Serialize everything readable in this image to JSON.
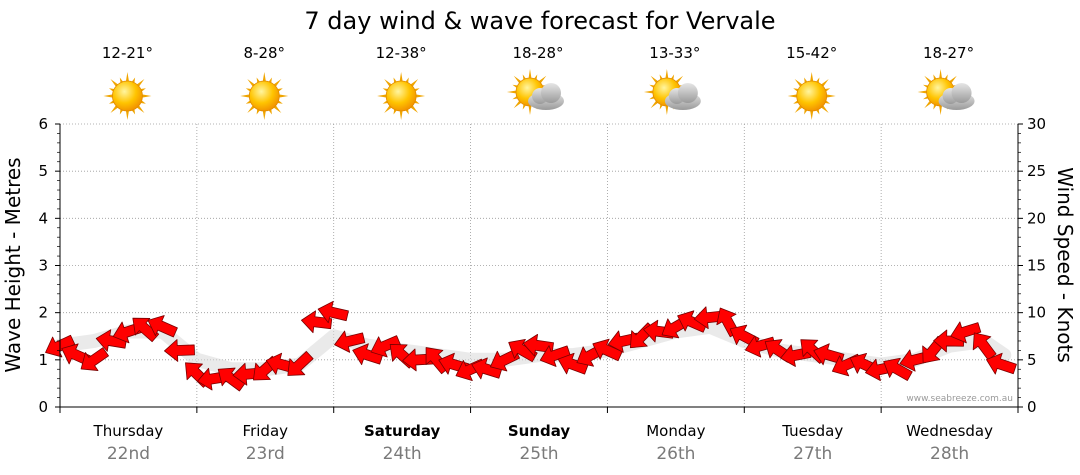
{
  "chart_data": {
    "type": "line",
    "title": "7 day wind & wave forecast for Vervale",
    "ylabel_left": "Wave Height - Metres",
    "ylabel_right": "Wind Speed - Knots",
    "ylim_left": [
      0,
      6
    ],
    "ylim_right": [
      0,
      30
    ],
    "yticks_left": [
      "0",
      "1",
      "2",
      "3",
      "4",
      "5",
      "6"
    ],
    "yticks_right": [
      "0",
      "5",
      "10",
      "15",
      "20",
      "25",
      "30"
    ],
    "grid": true,
    "days": [
      {
        "name": "Thursday",
        "date": "22nd",
        "temp": "12-21°",
        "icon": "sun-icon",
        "bold": false
      },
      {
        "name": "Friday",
        "date": "23rd",
        "temp": "8-28°",
        "icon": "sun-icon",
        "bold": false
      },
      {
        "name": "Saturday",
        "date": "24th",
        "temp": "12-38°",
        "icon": "sun-icon",
        "bold": true
      },
      {
        "name": "Sunday",
        "date": "25th",
        "temp": "18-28°",
        "icon": "sun-cloud-icon",
        "bold": true
      },
      {
        "name": "Monday",
        "date": "26th",
        "temp": "13-33°",
        "icon": "sun-cloud-icon",
        "bold": false
      },
      {
        "name": "Tuesday",
        "date": "27th",
        "temp": "15-42°",
        "icon": "sun-icon",
        "bold": false
      },
      {
        "name": "Wednesday",
        "date": "28th",
        "temp": "18-27°",
        "icon": "sun-cloud-icon",
        "bold": false
      }
    ],
    "wind_series": {
      "name": "Wind speed",
      "color": "#ff0000",
      "x_days": [
        0,
        0.12,
        0.25,
        0.38,
        0.5,
        0.62,
        0.75,
        0.88,
        1.0,
        1.12,
        1.25,
        1.38,
        1.5,
        1.62,
        1.75,
        1.88,
        2.0,
        2.12,
        2.25,
        2.38,
        2.5,
        2.62,
        2.75,
        2.88,
        3.0,
        3.12,
        3.25,
        3.38,
        3.5,
        3.62,
        3.75,
        3.88,
        4.0,
        4.12,
        4.25,
        4.38,
        4.5,
        4.62,
        4.75,
        4.88,
        5.0,
        5.12,
        5.25,
        5.38,
        5.5,
        5.62,
        5.75,
        5.88,
        6.0,
        6.12,
        6.25,
        6.38,
        6.5,
        6.62,
        6.75,
        6.88
      ],
      "knots": [
        6.5,
        5.5,
        5.0,
        7.0,
        8.0,
        8.3,
        8.5,
        6.0,
        3.5,
        3.0,
        3.0,
        3.5,
        4.0,
        4.5,
        4.5,
        9.0,
        10.0,
        7.0,
        5.5,
        6.5,
        5.5,
        5.0,
        5.0,
        4.5,
        4.0,
        4.0,
        5.0,
        6.0,
        6.5,
        5.5,
        4.5,
        5.5,
        6.0,
        7.0,
        7.5,
        8.0,
        8.5,
        9.0,
        9.5,
        9.0,
        7.5,
        6.5,
        6.0,
        5.5,
        6.0,
        5.5,
        4.5,
        4.5,
        4.0,
        4.0,
        5.0,
        6.0,
        7.0,
        8.0,
        6.5,
        4.5
      ]
    },
    "wave_series": {
      "name": "Wave height",
      "color": "#d8d8d8",
      "x_days": [
        0,
        0.25,
        0.5,
        0.75,
        1.0,
        1.25,
        1.5,
        1.75,
        2.0,
        2.25,
        2.5,
        2.75,
        3.0,
        3.25,
        3.5,
        3.75,
        4.0,
        4.25,
        4.5,
        4.75,
        5.0,
        5.25,
        5.5,
        5.75,
        6.0,
        6.25,
        6.5,
        6.75,
        6.9
      ],
      "metres": [
        1.3,
        1.4,
        1.6,
        1.6,
        1.0,
        0.8,
        0.8,
        0.9,
        1.5,
        1.3,
        1.2,
        1.1,
        1.0,
        1.0,
        1.1,
        1.1,
        1.2,
        1.4,
        1.6,
        1.7,
        1.4,
        1.2,
        1.1,
        1.0,
        0.9,
        1.0,
        1.3,
        1.4,
        1.1
      ]
    },
    "credit": "www.seabreeze.com.au"
  }
}
